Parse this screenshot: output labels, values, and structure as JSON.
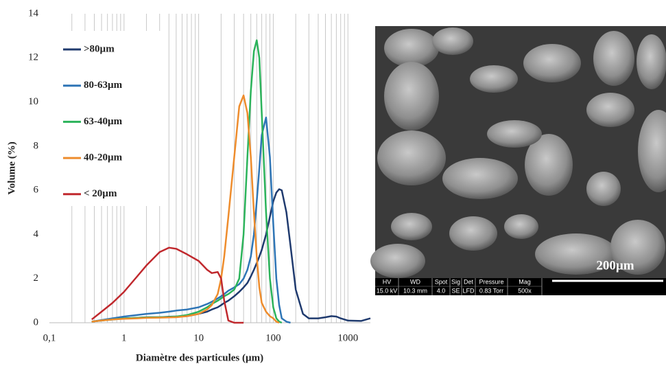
{
  "chart_data": {
    "type": "line",
    "xlabel": "Diamètre des particules (µm)",
    "ylabel": "Volume (%)",
    "xscale": "log",
    "legend": "upper left",
    "grid": true,
    "xlim": [
      0.1,
      2000
    ],
    "ylim": [
      0,
      14
    ],
    "xticks": [
      {
        "value": 0.1,
        "label": "0,1"
      },
      1,
      10,
      100,
      1000
    ],
    "yticks": [
      0,
      2,
      4,
      6,
      8,
      10,
      12,
      14
    ],
    "xgrid": [
      0.2,
      0.3,
      0.4,
      0.5,
      0.6,
      0.7,
      0.8,
      0.9,
      1,
      2,
      3,
      4,
      5,
      6,
      7,
      8,
      9,
      10,
      20,
      30,
      40,
      50,
      60,
      70,
      80,
      90,
      100,
      200,
      300,
      400,
      500,
      600,
      700,
      800,
      900,
      1000
    ],
    "x": [
      0.37,
      0.5,
      0.7,
      1,
      1.5,
      2,
      3,
      4,
      5,
      7,
      10,
      13,
      15,
      18,
      20,
      22,
      25,
      30,
      35,
      40,
      45,
      50,
      55,
      60,
      65,
      70,
      80,
      90,
      100,
      110,
      120,
      130,
      150,
      170,
      200,
      250,
      300,
      400,
      500,
      600,
      700,
      800,
      1000,
      1500,
      2000
    ],
    "series": [
      {
        "name": ">80µm",
        "color": "#1f3a6e",
        "values": [
          0.05,
          0.1,
          0.15,
          0.2,
          0.22,
          0.25,
          0.25,
          0.27,
          0.28,
          0.3,
          0.4,
          0.5,
          0.6,
          0.7,
          0.8,
          0.9,
          1.0,
          1.2,
          1.4,
          1.6,
          1.8,
          2.1,
          2.4,
          2.7,
          3.0,
          3.3,
          4.0,
          4.8,
          5.5,
          5.9,
          6.05,
          6.0,
          5.0,
          3.5,
          1.5,
          0.4,
          0.2,
          0.2,
          0.25,
          0.3,
          0.28,
          0.2,
          0.1,
          0.08,
          0.2
        ]
      },
      {
        "name": "80-63µm",
        "color": "#2e75b6",
        "values": [
          0.05,
          0.12,
          0.2,
          0.28,
          0.35,
          0.4,
          0.45,
          0.5,
          0.55,
          0.6,
          0.7,
          0.85,
          0.95,
          1.1,
          1.2,
          1.3,
          1.45,
          1.6,
          1.75,
          2.0,
          2.4,
          3.0,
          4.0,
          5.5,
          7.0,
          8.5,
          9.3,
          7.5,
          4.5,
          2.0,
          0.8,
          0.2,
          0.05,
          0,
          null,
          null,
          null,
          null,
          null,
          null,
          null,
          null,
          null,
          null,
          null
        ]
      },
      {
        "name": "63-40µm",
        "color": "#2bb35a",
        "values": [
          0.05,
          0.1,
          0.15,
          0.2,
          0.22,
          0.24,
          0.25,
          0.26,
          0.28,
          0.35,
          0.5,
          0.7,
          0.85,
          1.0,
          1.1,
          1.2,
          1.3,
          1.5,
          2.0,
          4,
          7.5,
          10.5,
          12.3,
          12.8,
          12.0,
          9.5,
          5.0,
          2.0,
          0.7,
          0.2,
          0.05,
          0,
          null,
          null,
          null,
          null,
          null,
          null,
          null,
          null,
          null,
          null,
          null,
          null,
          null
        ]
      },
      {
        "name": "40-20µm",
        "color": "#ee8c2c",
        "values": [
          0.05,
          0.1,
          0.15,
          0.18,
          0.2,
          0.22,
          0.23,
          0.24,
          0.25,
          0.3,
          0.4,
          0.6,
          0.8,
          1.3,
          2,
          3,
          4.8,
          7.5,
          9.8,
          10.3,
          9.5,
          7.5,
          5.0,
          3.0,
          1.6,
          0.9,
          0.5,
          0.3,
          0.2,
          0.05,
          0,
          null,
          null,
          null,
          null,
          null,
          null,
          null,
          null,
          null,
          null,
          null,
          null,
          null,
          null
        ]
      },
      {
        "name": "< 20µm",
        "color": "#c0282d",
        "values": [
          0.15,
          0.5,
          0.9,
          1.4,
          2.1,
          2.6,
          3.2,
          3.4,
          3.35,
          3.1,
          2.8,
          2.4,
          2.25,
          2.3,
          2.0,
          1.0,
          0.1,
          0,
          0,
          0,
          null,
          null,
          null,
          null,
          null,
          null,
          null,
          null,
          null,
          null,
          null,
          null,
          null,
          null,
          null,
          null,
          null,
          null,
          null,
          null,
          null,
          null,
          null,
          null,
          null
        ]
      }
    ]
  },
  "image": {
    "scale_label": "200µm",
    "info_headers": [
      "HV",
      "WD",
      "Spot",
      "Sig",
      "Det",
      "Pressure",
      "Mag"
    ],
    "info_values": [
      "15.0 kV",
      "10.3 mm",
      "4.0",
      "SE",
      "LFD",
      "0.83 Torr",
      "500x"
    ]
  }
}
